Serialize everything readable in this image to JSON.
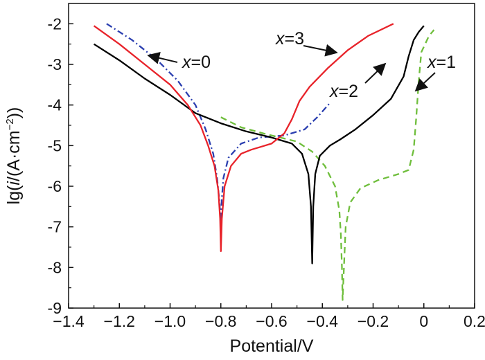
{
  "chart_data": {
    "type": "line",
    "xlabel": "Potential/V",
    "ylabel": {
      "prefix": "lg(",
      "var": "i",
      "mid": "/(A·cm",
      "sup": "−2",
      "suffix": "))"
    },
    "xlim": [
      -1.4,
      0.2
    ],
    "ylim": [
      -9,
      -1.5
    ],
    "x_ticks": [
      -1.4,
      -1.2,
      -1.0,
      -0.8,
      -0.6,
      -0.4,
      -0.2,
      0,
      0.2
    ],
    "x_tick_labels": [
      "−1.4",
      "−1.2",
      "−1.0",
      "−0.8",
      "−0.6",
      "−0.4",
      "−0.2",
      "0",
      "0.2"
    ],
    "y_ticks": [
      -9,
      -8,
      -7,
      -6,
      -5,
      -4,
      -3,
      -2
    ],
    "y_tick_labels": [
      "-9",
      "-8",
      "-7",
      "-6",
      "-5",
      "-4",
      "-3",
      "-2"
    ],
    "grid": false,
    "series": [
      {
        "name": "x=0",
        "color": "#2b3fb0",
        "dash": "dashdot",
        "points": [
          [
            -1.25,
            -2.0
          ],
          [
            -1.15,
            -2.4
          ],
          [
            -1.05,
            -2.9
          ],
          [
            -0.97,
            -3.4
          ],
          [
            -0.9,
            -4.0
          ],
          [
            -0.86,
            -4.6
          ],
          [
            -0.83,
            -5.2
          ],
          [
            -0.815,
            -5.8
          ],
          [
            -0.805,
            -6.4
          ],
          [
            -0.8,
            -7.1
          ],
          [
            -0.797,
            -6.4
          ],
          [
            -0.79,
            -5.8
          ],
          [
            -0.77,
            -5.3
          ],
          [
            -0.72,
            -4.95
          ],
          [
            -0.65,
            -4.8
          ],
          [
            -0.55,
            -4.75
          ],
          [
            -0.47,
            -4.6
          ],
          [
            -0.42,
            -4.3
          ],
          [
            -0.37,
            -3.95
          ]
        ]
      },
      {
        "name": "x=1",
        "color": "#6fbe3c",
        "dash": "dashed",
        "points": [
          [
            -0.8,
            -4.3
          ],
          [
            -0.72,
            -4.55
          ],
          [
            -0.62,
            -4.72
          ],
          [
            -0.5,
            -4.9
          ],
          [
            -0.44,
            -5.15
          ],
          [
            -0.39,
            -5.5
          ],
          [
            -0.35,
            -6.0
          ],
          [
            -0.333,
            -6.6
          ],
          [
            -0.327,
            -7.2
          ],
          [
            -0.323,
            -8.0
          ],
          [
            -0.32,
            -8.8
          ],
          [
            -0.315,
            -8.0
          ],
          [
            -0.308,
            -7.0
          ],
          [
            -0.29,
            -6.4
          ],
          [
            -0.25,
            -6.05
          ],
          [
            -0.18,
            -5.85
          ],
          [
            -0.1,
            -5.7
          ],
          [
            -0.06,
            -5.6
          ],
          [
            -0.04,
            -5.1
          ],
          [
            -0.03,
            -4.3
          ],
          [
            -0.02,
            -3.4
          ],
          [
            -0.01,
            -2.7
          ],
          [
            0.02,
            -2.3
          ],
          [
            0.04,
            -2.15
          ]
        ]
      },
      {
        "name": "x=2",
        "color": "#000000",
        "dash": "solid",
        "points": [
          [
            -1.3,
            -2.5
          ],
          [
            -1.2,
            -2.9
          ],
          [
            -1.1,
            -3.35
          ],
          [
            -1.0,
            -3.75
          ],
          [
            -0.9,
            -4.2
          ],
          [
            -0.8,
            -4.45
          ],
          [
            -0.7,
            -4.65
          ],
          [
            -0.6,
            -4.8
          ],
          [
            -0.52,
            -4.95
          ],
          [
            -0.48,
            -5.2
          ],
          [
            -0.455,
            -5.7
          ],
          [
            -0.445,
            -6.5
          ],
          [
            -0.44,
            -7.9
          ],
          [
            -0.436,
            -6.5
          ],
          [
            -0.428,
            -5.7
          ],
          [
            -0.41,
            -5.25
          ],
          [
            -0.37,
            -5.0
          ],
          [
            -0.33,
            -4.85
          ],
          [
            -0.27,
            -4.6
          ],
          [
            -0.2,
            -4.25
          ],
          [
            -0.13,
            -3.85
          ],
          [
            -0.08,
            -3.3
          ],
          [
            -0.06,
            -2.8
          ],
          [
            -0.04,
            -2.4
          ],
          [
            -0.02,
            -2.2
          ],
          [
            0.0,
            -2.05
          ]
        ]
      },
      {
        "name": "x=3",
        "color": "#e8232a",
        "dash": "solid",
        "points": [
          [
            -1.3,
            -2.05
          ],
          [
            -1.2,
            -2.5
          ],
          [
            -1.1,
            -3.0
          ],
          [
            -1.0,
            -3.5
          ],
          [
            -0.93,
            -4.0
          ],
          [
            -0.88,
            -4.5
          ],
          [
            -0.85,
            -5.0
          ],
          [
            -0.825,
            -5.5
          ],
          [
            -0.81,
            -6.1
          ],
          [
            -0.803,
            -6.8
          ],
          [
            -0.8,
            -7.6
          ],
          [
            -0.796,
            -6.8
          ],
          [
            -0.785,
            -6.0
          ],
          [
            -0.76,
            -5.5
          ],
          [
            -0.72,
            -5.2
          ],
          [
            -0.68,
            -5.1
          ],
          [
            -0.6,
            -4.95
          ],
          [
            -0.55,
            -4.7
          ],
          [
            -0.52,
            -4.35
          ],
          [
            -0.49,
            -3.9
          ],
          [
            -0.45,
            -3.55
          ],
          [
            -0.38,
            -3.1
          ],
          [
            -0.3,
            -2.65
          ],
          [
            -0.22,
            -2.3
          ],
          [
            -0.12,
            -2.0
          ]
        ]
      }
    ],
    "annotations": [
      {
        "var": "x",
        "text": "=0"
      },
      {
        "var": "x",
        "text": "=3"
      },
      {
        "var": "x",
        "text": "=2"
      },
      {
        "var": "x",
        "text": "=1"
      }
    ]
  }
}
